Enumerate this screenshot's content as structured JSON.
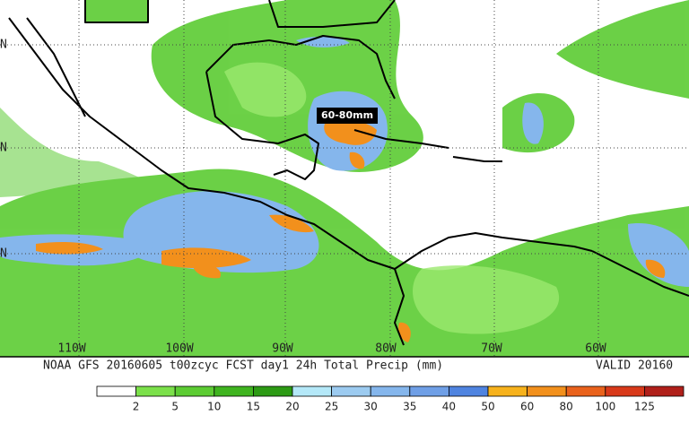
{
  "map": {
    "annotation": "60-80mm",
    "latitude_labels": [
      "N",
      "N",
      "N"
    ],
    "longitude_labels": [
      "110W",
      "100W",
      "90W",
      "80W",
      "70W",
      "60W"
    ],
    "caption": "NOAA GFS 20160605 t00zcyc FCST day1 24h Total Precip (mm)",
    "valid": "VALID 20160",
    "legend": {
      "colors": [
        "#ffffff",
        "#7be04a",
        "#5ccc33",
        "#3fb41f",
        "#2c9a14",
        "#b4e8f8",
        "#9ccbf0",
        "#85b6ec",
        "#6f9fe6",
        "#4f84e0",
        "#f7b21c",
        "#f2901c",
        "#e9621c",
        "#d8391a",
        "#b0201a"
      ],
      "ticks": [
        2,
        5,
        10,
        15,
        20,
        25,
        30,
        35,
        40,
        50,
        60,
        80,
        100,
        125
      ]
    }
  }
}
